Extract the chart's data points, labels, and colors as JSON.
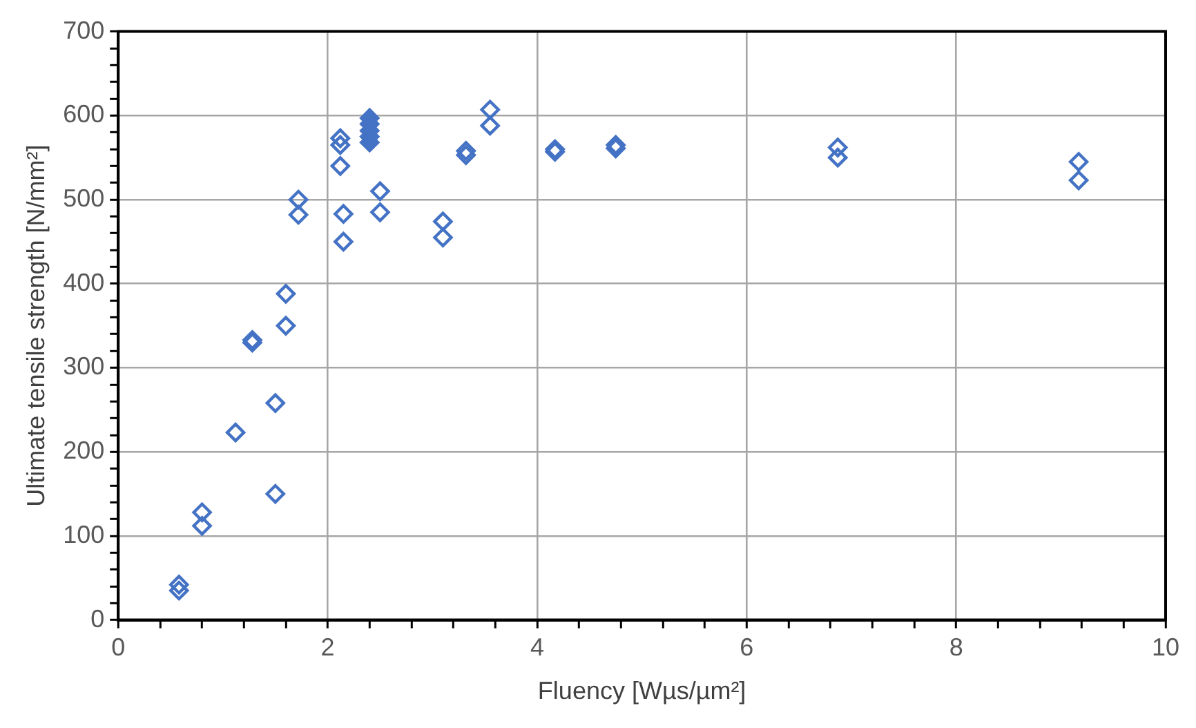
{
  "chart_data": {
    "type": "scatter",
    "xlabel": "Fluency [Wµs/µm²]",
    "ylabel": "Ultimate tensile strength [N/mm²]",
    "xlim": [
      0,
      10
    ],
    "ylim": [
      0,
      700
    ],
    "xticks": [
      0,
      {
        "value": 0.4,
        "label": null
      },
      {
        "value": 0.8,
        "label": null
      },
      {
        "value": 1.2,
        "label": null
      },
      {
        "value": 1.6,
        "label": null
      },
      2,
      {
        "value": 2.4,
        "label": null
      },
      {
        "value": 2.8,
        "label": null
      },
      {
        "value": 3.2,
        "label": null
      },
      {
        "value": 3.6,
        "label": null
      },
      4,
      {
        "value": 4.4,
        "label": null
      },
      {
        "value": 4.8,
        "label": null
      },
      {
        "value": 5.2,
        "label": null
      },
      {
        "value": 5.6,
        "label": null
      },
      6,
      {
        "value": 6.4,
        "label": null
      },
      {
        "value": 6.8,
        "label": null
      },
      {
        "value": 7.2,
        "label": null
      },
      {
        "value": 7.6,
        "label": null
      },
      8,
      {
        "value": 8.4,
        "label": null
      },
      {
        "value": 8.8,
        "label": null
      },
      {
        "value": 9.2,
        "label": null
      },
      {
        "value": 9.6,
        "label": null
      },
      10
    ],
    "yticks": [
      0,
      {
        "value": 20,
        "label": null
      },
      {
        "value": 40,
        "label": null
      },
      {
        "value": 60,
        "label": null
      },
      {
        "value": 80,
        "label": null
      },
      100,
      {
        "value": 120,
        "label": null
      },
      {
        "value": 140,
        "label": null
      },
      {
        "value": 160,
        "label": null
      },
      {
        "value": 180,
        "label": null
      },
      200,
      {
        "value": 220,
        "label": null
      },
      {
        "value": 240,
        "label": null
      },
      {
        "value": 260,
        "label": null
      },
      {
        "value": 280,
        "label": null
      },
      300,
      {
        "value": 320,
        "label": null
      },
      {
        "value": 340,
        "label": null
      },
      {
        "value": 360,
        "label": null
      },
      {
        "value": 380,
        "label": null
      },
      400,
      {
        "value": 420,
        "label": null
      },
      {
        "value": 440,
        "label": null
      },
      {
        "value": 460,
        "label": null
      },
      {
        "value": 480,
        "label": null
      },
      500,
      {
        "value": 520,
        "label": null
      },
      {
        "value": 540,
        "label": null
      },
      {
        "value": 560,
        "label": null
      },
      {
        "value": 580,
        "label": null
      },
      600,
      {
        "value": 620,
        "label": null
      },
      {
        "value": 640,
        "label": null
      },
      {
        "value": 660,
        "label": null
      },
      {
        "value": 680,
        "label": null
      },
      700
    ],
    "grid": true,
    "legend": false,
    "marker": "diamond",
    "series": [
      {
        "color": "#4472c4",
        "x": [
          0.58,
          0.58,
          0.8,
          0.8,
          1.12,
          1.28,
          1.28,
          1.5,
          1.5,
          1.6,
          1.6,
          1.72,
          1.72,
          2.12,
          2.12,
          2.12,
          2.15,
          2.15,
          2.5,
          2.5,
          3.1,
          3.1,
          3.32,
          3.32,
          3.55,
          3.55,
          4.17,
          4.17,
          4.75,
          4.75,
          6.87,
          6.87,
          9.17,
          9.17
        ],
        "values": [
          42,
          35,
          128,
          112,
          223,
          333,
          330,
          258,
          150,
          388,
          350,
          500,
          482,
          573,
          565,
          540,
          483,
          450,
          510,
          485,
          474,
          455,
          558,
          553,
          607,
          588,
          560,
          557,
          565,
          561,
          562,
          550,
          545,
          523
        ]
      },
      {
        "color": "#4472c4",
        "x": [
          2.4,
          2.4,
          2.4,
          2.4,
          2.4
        ],
        "values": [
          597,
          590,
          582,
          575,
          568
        ]
      }
    ]
  }
}
